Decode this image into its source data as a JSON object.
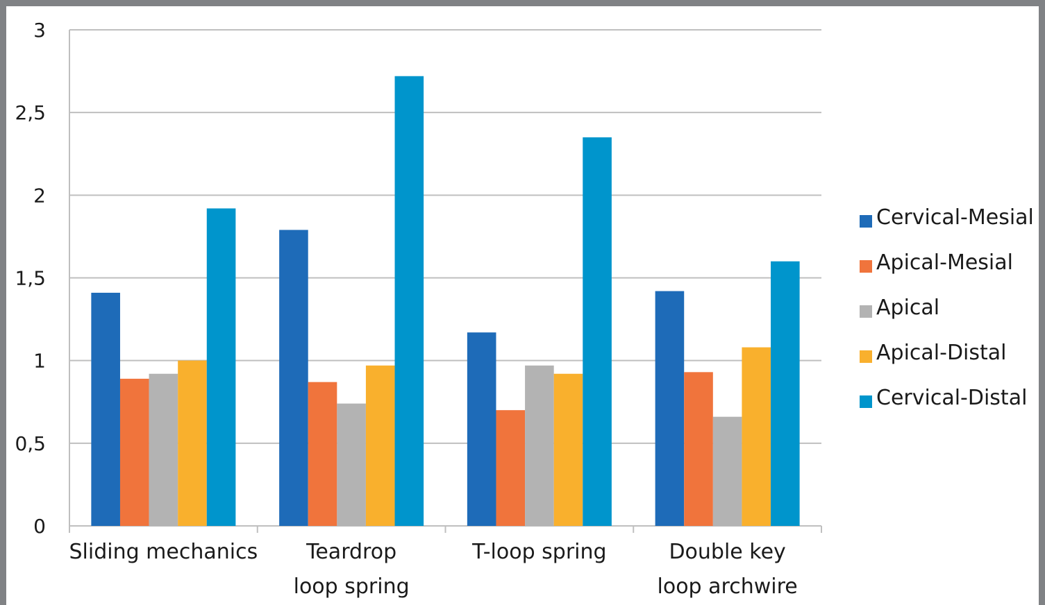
{
  "chart_data": {
    "type": "bar",
    "title": "",
    "xlabel": "",
    "ylabel": "",
    "ylim": [
      0,
      3
    ],
    "yticks": [
      "0",
      "0,5",
      "1",
      "1,5",
      "2",
      "2,5",
      "3"
    ],
    "grid": true,
    "legend_position": "right",
    "categories": [
      [
        "Sliding mechanics"
      ],
      [
        "Teardrop",
        "loop spring"
      ],
      [
        "T-loop spring"
      ],
      [
        "Double key",
        "loop archwire"
      ]
    ],
    "series": [
      {
        "name": "Cervical-Mesial",
        "color": "#1e6bb8",
        "values": [
          1.41,
          1.79,
          1.17,
          1.42
        ]
      },
      {
        "name": "Apical-Mesial",
        "color": "#f0743c",
        "values": [
          0.89,
          0.87,
          0.7,
          0.93
        ]
      },
      {
        "name": "Apical",
        "color": "#b3b3b3",
        "values": [
          0.92,
          0.74,
          0.97,
          0.66
        ]
      },
      {
        "name": "Apical-Distal",
        "color": "#f9b02d",
        "values": [
          1.0,
          0.97,
          0.92,
          1.08
        ]
      },
      {
        "name": "Cervical-Distal",
        "color": "#0095cc",
        "values": [
          1.92,
          2.72,
          2.35,
          1.6
        ]
      }
    ]
  }
}
